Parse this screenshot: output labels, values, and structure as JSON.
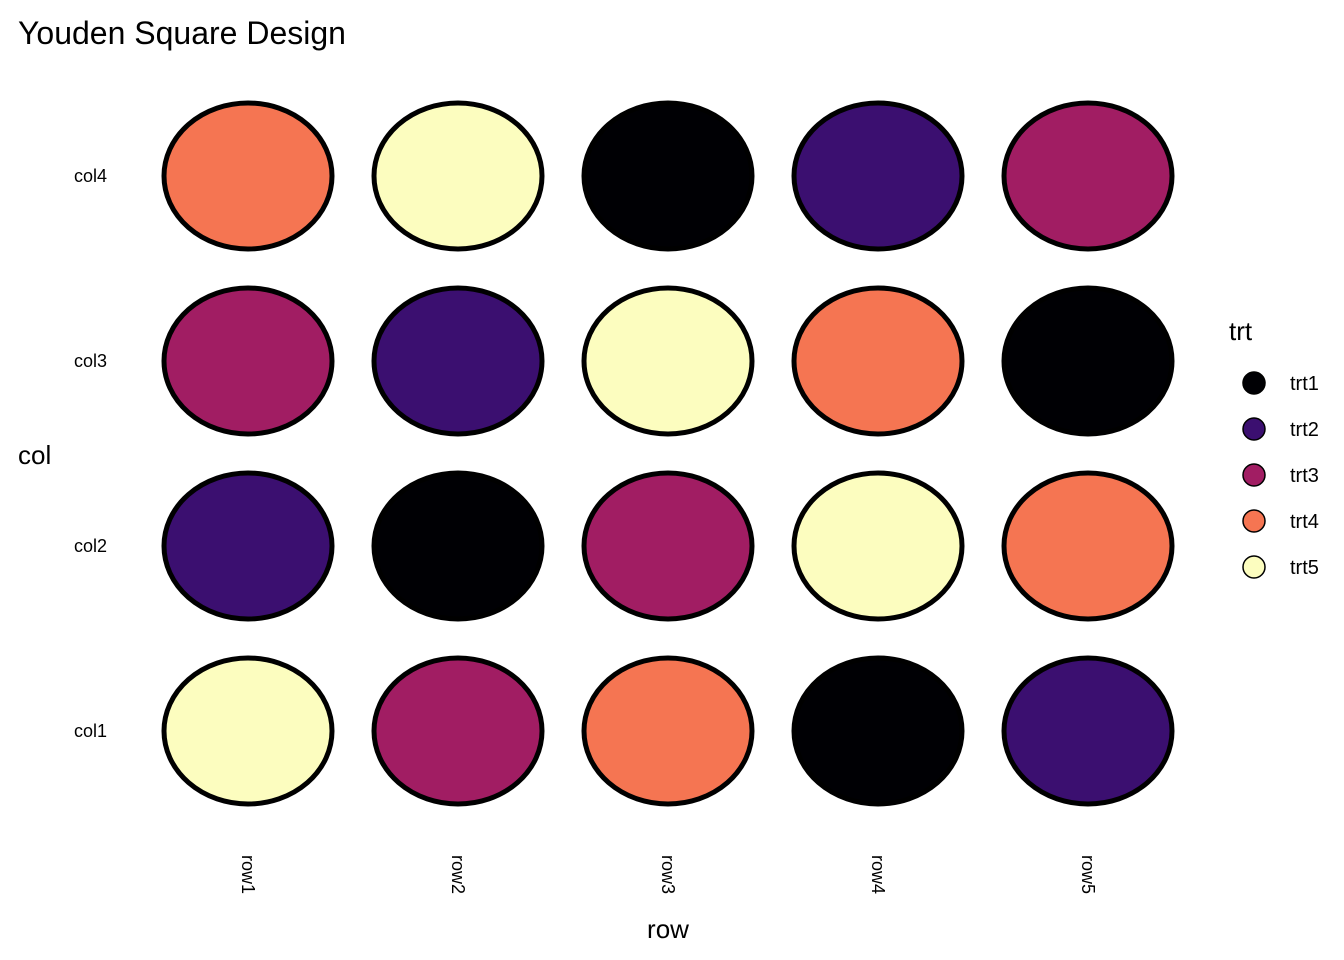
{
  "chart_data": {
    "type": "scatter",
    "title": "Youden Square Design",
    "xlabel": "row",
    "ylabel": "col",
    "x_categories": [
      "row1",
      "row2",
      "row3",
      "row4",
      "row5"
    ],
    "y_categories": [
      "col1",
      "col2",
      "col3",
      "col4"
    ],
    "legend": {
      "title": "trt",
      "position": "right",
      "entries": [
        {
          "name": "trt1",
          "color": "#000004"
        },
        {
          "name": "trt2",
          "color": "#3B0F70"
        },
        {
          "name": "trt3",
          "color": "#A11D63"
        },
        {
          "name": "trt4",
          "color": "#F57552"
        },
        {
          "name": "trt5",
          "color": "#FCFDBF"
        }
      ]
    },
    "grid": false,
    "points": [
      {
        "x": "row1",
        "y": "col1",
        "trt": "trt5"
      },
      {
        "x": "row2",
        "y": "col1",
        "trt": "trt3"
      },
      {
        "x": "row3",
        "y": "col1",
        "trt": "trt4"
      },
      {
        "x": "row4",
        "y": "col1",
        "trt": "trt1"
      },
      {
        "x": "row5",
        "y": "col1",
        "trt": "trt2"
      },
      {
        "x": "row1",
        "y": "col2",
        "trt": "trt2"
      },
      {
        "x": "row2",
        "y": "col2",
        "trt": "trt1"
      },
      {
        "x": "row3",
        "y": "col2",
        "trt": "trt3"
      },
      {
        "x": "row4",
        "y": "col2",
        "trt": "trt5"
      },
      {
        "x": "row5",
        "y": "col2",
        "trt": "trt4"
      },
      {
        "x": "row1",
        "y": "col3",
        "trt": "trt3"
      },
      {
        "x": "row2",
        "y": "col3",
        "trt": "trt2"
      },
      {
        "x": "row3",
        "y": "col3",
        "trt": "trt5"
      },
      {
        "x": "row4",
        "y": "col3",
        "trt": "trt4"
      },
      {
        "x": "row5",
        "y": "col3",
        "trt": "trt1"
      },
      {
        "x": "row1",
        "y": "col4",
        "trt": "trt4"
      },
      {
        "x": "row2",
        "y": "col4",
        "trt": "trt5"
      },
      {
        "x": "row3",
        "y": "col4",
        "trt": "trt1"
      },
      {
        "x": "row4",
        "y": "col4",
        "trt": "trt2"
      },
      {
        "x": "row5",
        "y": "col4",
        "trt": "trt3"
      }
    ]
  }
}
